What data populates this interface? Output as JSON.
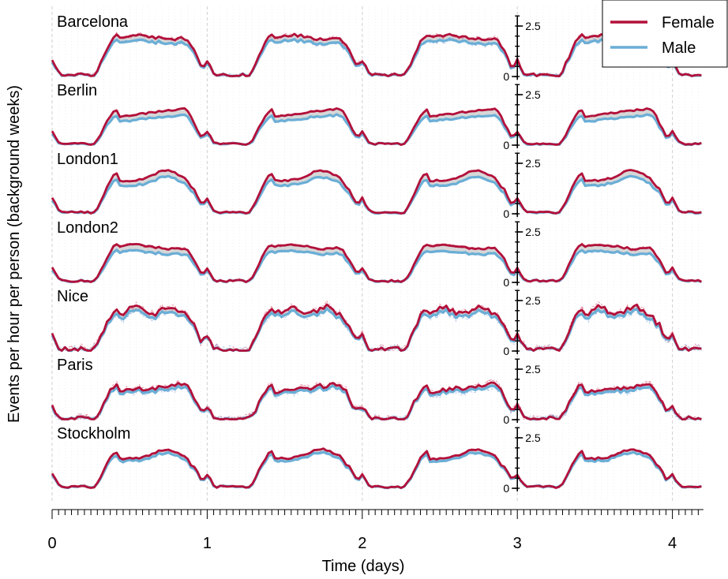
{
  "chart_data": {
    "type": "line",
    "xlabel": "Time (days)",
    "ylabel": "Events per hour per person (background weeks)",
    "xlim": [
      0,
      4.2
    ],
    "x_ticks": [
      "0",
      "1",
      "2",
      "3",
      "4"
    ],
    "panel_ylim": [
      0,
      3.0
    ],
    "panel_y_ticks": [
      "0",
      "2.5"
    ],
    "legend": {
      "placement": "top-right",
      "entries": [
        "Female",
        "Male"
      ]
    },
    "grid": true,
    "colors": {
      "female": "#b2103a",
      "male": "#6aaed6",
      "band": "#d0d0d0",
      "grid": "#cfcfcf"
    },
    "panels": [
      {
        "city": "Barcelona",
        "day_level": 2.05,
        "gap": 0.25,
        "noise": 0.15,
        "shape": "flat",
        "male_min": 0.95
      },
      {
        "city": "Berlin",
        "day_level": 1.75,
        "gap": 0.3,
        "noise": 0.08,
        "shape": "rising",
        "male_min": 0.93
      },
      {
        "city": "London1",
        "day_level": 2.0,
        "gap": 0.3,
        "noise": 0.08,
        "shape": "peak",
        "male_min": 0.93
      },
      {
        "city": "London2",
        "day_level": 1.85,
        "gap": 0.3,
        "noise": 0.1,
        "shape": "flat",
        "male_min": 0.93
      },
      {
        "city": "Nice",
        "day_level": 2.1,
        "gap": 0.2,
        "noise": 0.25,
        "shape": "double",
        "male_min": 0.93
      },
      {
        "city": "Paris",
        "day_level": 1.7,
        "gap": 0.15,
        "noise": 0.22,
        "shape": "rising",
        "male_min": 0.93
      },
      {
        "city": "Stockholm",
        "day_level": 1.8,
        "gap": 0.15,
        "noise": 0.1,
        "shape": "peak",
        "male_min": 0.93
      }
    ]
  }
}
